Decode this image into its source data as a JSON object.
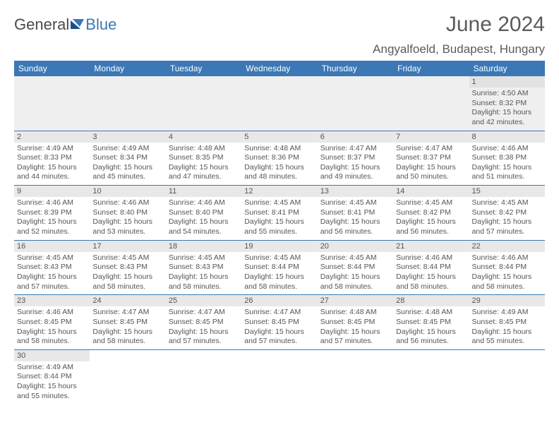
{
  "brand": {
    "part1": "General",
    "part2": "Blue"
  },
  "title": "June 2024",
  "location": "Angyalfoeld, Budapest, Hungary",
  "colors": {
    "header_bg": "#3b78b5",
    "header_text": "#ffffff",
    "daynum_bg": "#e8e8e8",
    "border": "#3b78b5",
    "text": "#555555",
    "title_text": "#5a5a5a"
  },
  "weekdays": [
    "Sunday",
    "Monday",
    "Tuesday",
    "Wednesday",
    "Thursday",
    "Friday",
    "Saturday"
  ],
  "weeks": [
    [
      null,
      null,
      null,
      null,
      null,
      null,
      {
        "n": "1",
        "sr": "4:50 AM",
        "ss": "8:32 PM",
        "dl": "15 hours and 42 minutes."
      }
    ],
    [
      {
        "n": "2",
        "sr": "4:49 AM",
        "ss": "8:33 PM",
        "dl": "15 hours and 44 minutes."
      },
      {
        "n": "3",
        "sr": "4:49 AM",
        "ss": "8:34 PM",
        "dl": "15 hours and 45 minutes."
      },
      {
        "n": "4",
        "sr": "4:48 AM",
        "ss": "8:35 PM",
        "dl": "15 hours and 47 minutes."
      },
      {
        "n": "5",
        "sr": "4:48 AM",
        "ss": "8:36 PM",
        "dl": "15 hours and 48 minutes."
      },
      {
        "n": "6",
        "sr": "4:47 AM",
        "ss": "8:37 PM",
        "dl": "15 hours and 49 minutes."
      },
      {
        "n": "7",
        "sr": "4:47 AM",
        "ss": "8:37 PM",
        "dl": "15 hours and 50 minutes."
      },
      {
        "n": "8",
        "sr": "4:46 AM",
        "ss": "8:38 PM",
        "dl": "15 hours and 51 minutes."
      }
    ],
    [
      {
        "n": "9",
        "sr": "4:46 AM",
        "ss": "8:39 PM",
        "dl": "15 hours and 52 minutes."
      },
      {
        "n": "10",
        "sr": "4:46 AM",
        "ss": "8:40 PM",
        "dl": "15 hours and 53 minutes."
      },
      {
        "n": "11",
        "sr": "4:46 AM",
        "ss": "8:40 PM",
        "dl": "15 hours and 54 minutes."
      },
      {
        "n": "12",
        "sr": "4:45 AM",
        "ss": "8:41 PM",
        "dl": "15 hours and 55 minutes."
      },
      {
        "n": "13",
        "sr": "4:45 AM",
        "ss": "8:41 PM",
        "dl": "15 hours and 56 minutes."
      },
      {
        "n": "14",
        "sr": "4:45 AM",
        "ss": "8:42 PM",
        "dl": "15 hours and 56 minutes."
      },
      {
        "n": "15",
        "sr": "4:45 AM",
        "ss": "8:42 PM",
        "dl": "15 hours and 57 minutes."
      }
    ],
    [
      {
        "n": "16",
        "sr": "4:45 AM",
        "ss": "8:43 PM",
        "dl": "15 hours and 57 minutes."
      },
      {
        "n": "17",
        "sr": "4:45 AM",
        "ss": "8:43 PM",
        "dl": "15 hours and 58 minutes."
      },
      {
        "n": "18",
        "sr": "4:45 AM",
        "ss": "8:43 PM",
        "dl": "15 hours and 58 minutes."
      },
      {
        "n": "19",
        "sr": "4:45 AM",
        "ss": "8:44 PM",
        "dl": "15 hours and 58 minutes."
      },
      {
        "n": "20",
        "sr": "4:45 AM",
        "ss": "8:44 PM",
        "dl": "15 hours and 58 minutes."
      },
      {
        "n": "21",
        "sr": "4:46 AM",
        "ss": "8:44 PM",
        "dl": "15 hours and 58 minutes."
      },
      {
        "n": "22",
        "sr": "4:46 AM",
        "ss": "8:44 PM",
        "dl": "15 hours and 58 minutes."
      }
    ],
    [
      {
        "n": "23",
        "sr": "4:46 AM",
        "ss": "8:45 PM",
        "dl": "15 hours and 58 minutes."
      },
      {
        "n": "24",
        "sr": "4:47 AM",
        "ss": "8:45 PM",
        "dl": "15 hours and 58 minutes."
      },
      {
        "n": "25",
        "sr": "4:47 AM",
        "ss": "8:45 PM",
        "dl": "15 hours and 57 minutes."
      },
      {
        "n": "26",
        "sr": "4:47 AM",
        "ss": "8:45 PM",
        "dl": "15 hours and 57 minutes."
      },
      {
        "n": "27",
        "sr": "4:48 AM",
        "ss": "8:45 PM",
        "dl": "15 hours and 57 minutes."
      },
      {
        "n": "28",
        "sr": "4:48 AM",
        "ss": "8:45 PM",
        "dl": "15 hours and 56 minutes."
      },
      {
        "n": "29",
        "sr": "4:49 AM",
        "ss": "8:45 PM",
        "dl": "15 hours and 55 minutes."
      }
    ],
    [
      {
        "n": "30",
        "sr": "4:49 AM",
        "ss": "8:44 PM",
        "dl": "15 hours and 55 minutes."
      },
      null,
      null,
      null,
      null,
      null,
      null
    ]
  ],
  "labels": {
    "sunrise": "Sunrise:",
    "sunset": "Sunset:",
    "daylight": "Daylight:"
  }
}
